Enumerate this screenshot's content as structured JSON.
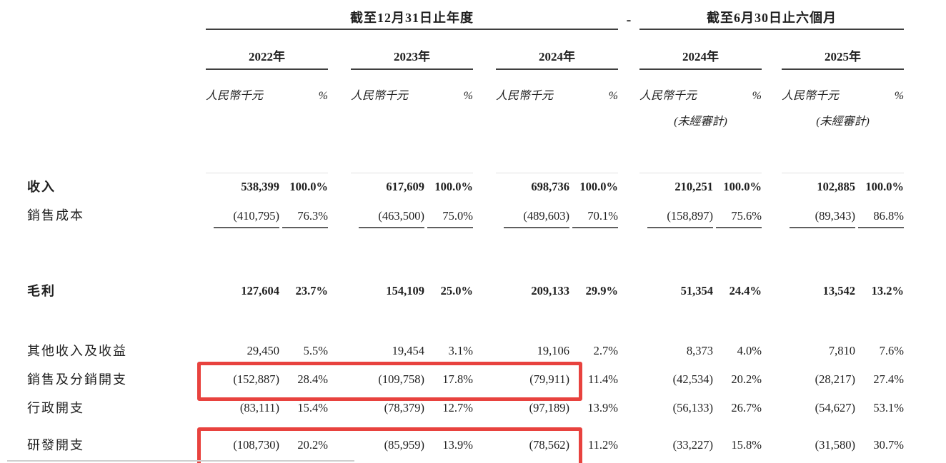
{
  "table": {
    "header": {
      "group_annual": {
        "title": "截至12月31日止年度",
        "years": [
          "2022年",
          "2023年",
          "2024年"
        ]
      },
      "separator": "-",
      "group_interim": {
        "title": "截至6月30日止六個月",
        "years": [
          "2024年",
          "2025年"
        ]
      },
      "unit_label": "人民幣千元",
      "pct_label": "%",
      "unaudited_label": "(未經審計)"
    },
    "highlight_color": "#e8423e",
    "rows": [
      {
        "label": "收入",
        "bold": true,
        "values": [
          "538,399",
          "100.0%",
          "617,609",
          "100.0%",
          "698,736",
          "100.0%",
          "210,251",
          "100.0%",
          "102,885",
          "100.0%"
        ]
      },
      {
        "label": "銷售成本",
        "bold": false,
        "underline": true,
        "values": [
          "(410,795)",
          "76.3%",
          "(463,500)",
          "75.0%",
          "(489,603)",
          "70.1%",
          "(158,897)",
          "75.6%",
          "(89,343)",
          "86.8%"
        ]
      },
      {
        "label": "毛利",
        "bold": true,
        "values": [
          "127,604",
          "23.7%",
          "154,109",
          "25.0%",
          "209,133",
          "29.9%",
          "51,354",
          "24.4%",
          "13,542",
          "13.2%"
        ]
      },
      {
        "label": "其他收入及收益",
        "bold": false,
        "values": [
          "29,450",
          "5.5%",
          "19,454",
          "3.1%",
          "19,106",
          "2.7%",
          "8,373",
          "4.0%",
          "7,810",
          "7.6%"
        ]
      },
      {
        "label": "銷售及分銷開支",
        "bold": false,
        "highlight": true,
        "values": [
          "(152,887)",
          "28.4%",
          "(109,758)",
          "17.8%",
          "(79,911)",
          "11.4%",
          "(42,534)",
          "20.2%",
          "(28,217)",
          "27.4%"
        ]
      },
      {
        "label": "行政開支",
        "bold": false,
        "values": [
          "(83,111)",
          "15.4%",
          "(78,379)",
          "12.7%",
          "(97,189)",
          "13.9%",
          "(56,133)",
          "26.7%",
          "(54,627)",
          "53.1%"
        ]
      },
      {
        "label": "研發開支",
        "bold": false,
        "highlight": true,
        "values": [
          "(108,730)",
          "20.2%",
          "(85,959)",
          "13.9%",
          "(78,562)",
          "11.2%",
          "(33,227)",
          "15.8%",
          "(31,580)",
          "30.7%"
        ]
      }
    ]
  }
}
